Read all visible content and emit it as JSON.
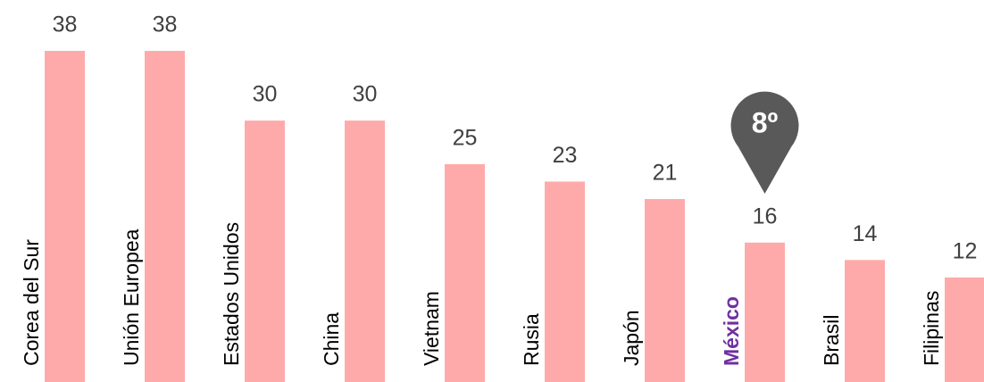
{
  "chart_data": {
    "type": "bar",
    "categories": [
      "Corea del Sur",
      "Unión Europea",
      "Estados Unidos",
      "China",
      "Vietnam",
      "Rusia",
      "Japón",
      "México",
      "Brasil",
      "Filipinas"
    ],
    "values": [
      38,
      38,
      30,
      30,
      25,
      23,
      21,
      16,
      14,
      12
    ],
    "color": "#ffaaaa",
    "highlight": {
      "index": 7,
      "color": "#7030a0"
    },
    "annotation": {
      "text": "8º",
      "index": 7,
      "color": "#595959"
    }
  }
}
